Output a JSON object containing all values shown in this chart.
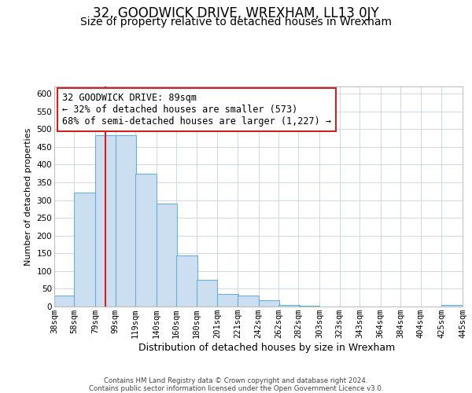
{
  "title": "32, GOODWICK DRIVE, WREXHAM, LL13 0JY",
  "subtitle": "Size of property relative to detached houses in Wrexham",
  "xlabel": "Distribution of detached houses by size in Wrexham",
  "ylabel": "Number of detached properties",
  "footer_line1": "Contains HM Land Registry data © Crown copyright and database right 2024.",
  "footer_line2": "Contains public sector information licensed under the Open Government Licence v3.0.",
  "bar_left_edges": [
    38,
    58,
    79,
    99,
    119,
    140,
    160,
    180,
    201,
    221,
    242,
    262,
    282,
    303,
    323,
    343,
    364,
    384,
    404,
    425
  ],
  "bar_heights": [
    32,
    322,
    483,
    483,
    375,
    290,
    145,
    75,
    35,
    30,
    18,
    5,
    2,
    1,
    1,
    1,
    1,
    0,
    0,
    5
  ],
  "bin_width": 21,
  "bar_color": "#ccdff0",
  "bar_edge_color": "#6baed6",
  "property_size": 89,
  "property_line_color": "#cc2222",
  "annotation_text": "32 GOODWICK DRIVE: 89sqm\n← 32% of detached houses are smaller (573)\n68% of semi-detached houses are larger (1,227) →",
  "annotation_box_color": "#cc2222",
  "xlim_labels": [
    "38sqm",
    "58sqm",
    "79sqm",
    "99sqm",
    "119sqm",
    "140sqm",
    "160sqm",
    "180sqm",
    "201sqm",
    "221sqm",
    "242sqm",
    "262sqm",
    "282sqm",
    "303sqm",
    "323sqm",
    "343sqm",
    "364sqm",
    "384sqm",
    "404sqm",
    "425sqm",
    "445sqm"
  ],
  "ylim": [
    0,
    620
  ],
  "yticks": [
    0,
    50,
    100,
    150,
    200,
    250,
    300,
    350,
    400,
    450,
    500,
    550,
    600
  ],
  "grid_color": "#d0d8e4",
  "background_color": "#ffffff",
  "title_fontsize": 12,
  "subtitle_fontsize": 10,
  "annotation_fontsize": 8.5,
  "axis_label_fontsize": 9,
  "ylabel_fontsize": 8,
  "tick_fontsize": 7.5
}
